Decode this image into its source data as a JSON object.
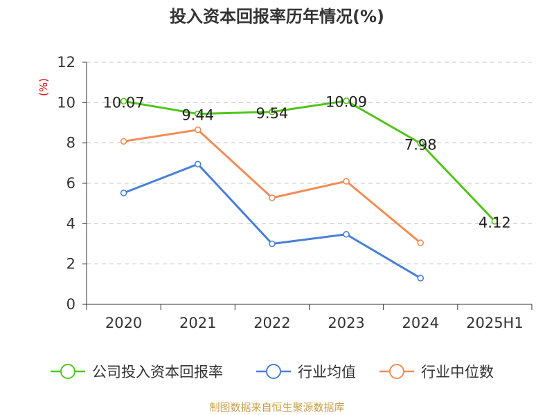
{
  "chart_data": {
    "type": "line",
    "title": "投入资本回报率历年情况(%)",
    "ylabel": "(%)",
    "xlabel": "",
    "categories": [
      "2020",
      "2021",
      "2022",
      "2023",
      "2024",
      "2025H1"
    ],
    "ylim": [
      0,
      12
    ],
    "yticks": [
      0,
      2,
      4,
      6,
      8,
      10,
      12
    ],
    "grid": true,
    "legend_position": "bottom",
    "series": [
      {
        "name": "公司投入资本回报率",
        "color": "#52c41a",
        "values": [
          10.07,
          9.44,
          9.54,
          10.09,
          7.98,
          4.12
        ],
        "labels": [
          "10.07",
          "9.44",
          "9.54",
          "10.09",
          "7.98",
          "4.12"
        ]
      },
      {
        "name": "行业均值",
        "color": "#4a7fd6",
        "values": [
          5.52,
          6.95,
          3.0,
          3.47,
          1.3,
          null
        ]
      },
      {
        "name": "行业中位数",
        "color": "#f28c55",
        "values": [
          8.08,
          8.65,
          5.28,
          6.1,
          3.05,
          null
        ]
      }
    ]
  },
  "source": "制图数据来自恒生聚源数据库"
}
